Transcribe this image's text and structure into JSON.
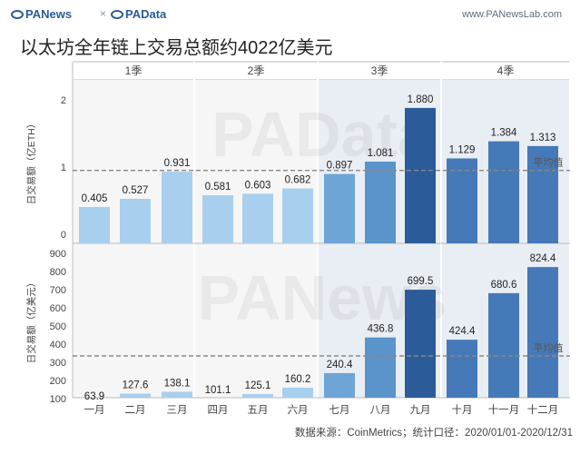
{
  "header": {
    "brand_left": "PANews",
    "brand_right": "PAData",
    "separator": "×",
    "site": "www.PANewsLab.com"
  },
  "title": "以太坊全年链上交易总额约4022亿美元",
  "source": "数据来源：CoinMetrics；统计口径：2020/01/01-2020/12/31",
  "colors": {
    "q1": "#a8cfee",
    "q3a": "#6ea4d6",
    "q3b": "#5b93cb",
    "q3c": "#2b5c99",
    "q4": "#4679b7",
    "panel_q3q4": "#e9eef4",
    "panel_q1q2": "#f6f6f6",
    "avg_line": "#888888"
  },
  "chart_data": {
    "type": "bar",
    "quarters": [
      "1季",
      "2季",
      "3季",
      "4季"
    ],
    "categories": [
      "一月",
      "二月",
      "三月",
      "四月",
      "五月",
      "六月",
      "七月",
      "八月",
      "九月",
      "十月",
      "十一月",
      "十二月"
    ],
    "avg_label": "平均值",
    "panels": [
      {
        "ylabel": "日交易额（亿ETH）",
        "ylim": [
          0,
          2
        ],
        "ticks": [
          0,
          1,
          2
        ],
        "average": 0.95,
        "values": [
          0.405,
          0.527,
          0.931,
          0.581,
          0.603,
          0.682,
          0.897,
          1.081,
          1.88,
          1.129,
          1.384,
          1.313
        ],
        "labels": [
          "0.405",
          "0.527",
          "0.931",
          "0.581",
          "0.603",
          "0.682",
          "0.897",
          "1.081",
          "1.880",
          "1.129",
          "1.384",
          "1.313"
        ]
      },
      {
        "ylabel": "日交易额（亿美元）",
        "ylim": [
          0,
          900
        ],
        "ticks": [
          100,
          200,
          300,
          400,
          500,
          600,
          700,
          800,
          900
        ],
        "average": 335,
        "values": [
          63.9,
          127.6,
          138.1,
          101.1,
          125.1,
          160.2,
          240.4,
          436.8,
          699.5,
          424.4,
          680.6,
          824.4
        ],
        "labels": [
          "63.9",
          "127.6",
          "138.1",
          "101.1",
          "125.1",
          "160.2",
          "240.4",
          "436.8",
          "699.5",
          "424.4",
          "680.6",
          "824.4"
        ]
      }
    ]
  }
}
